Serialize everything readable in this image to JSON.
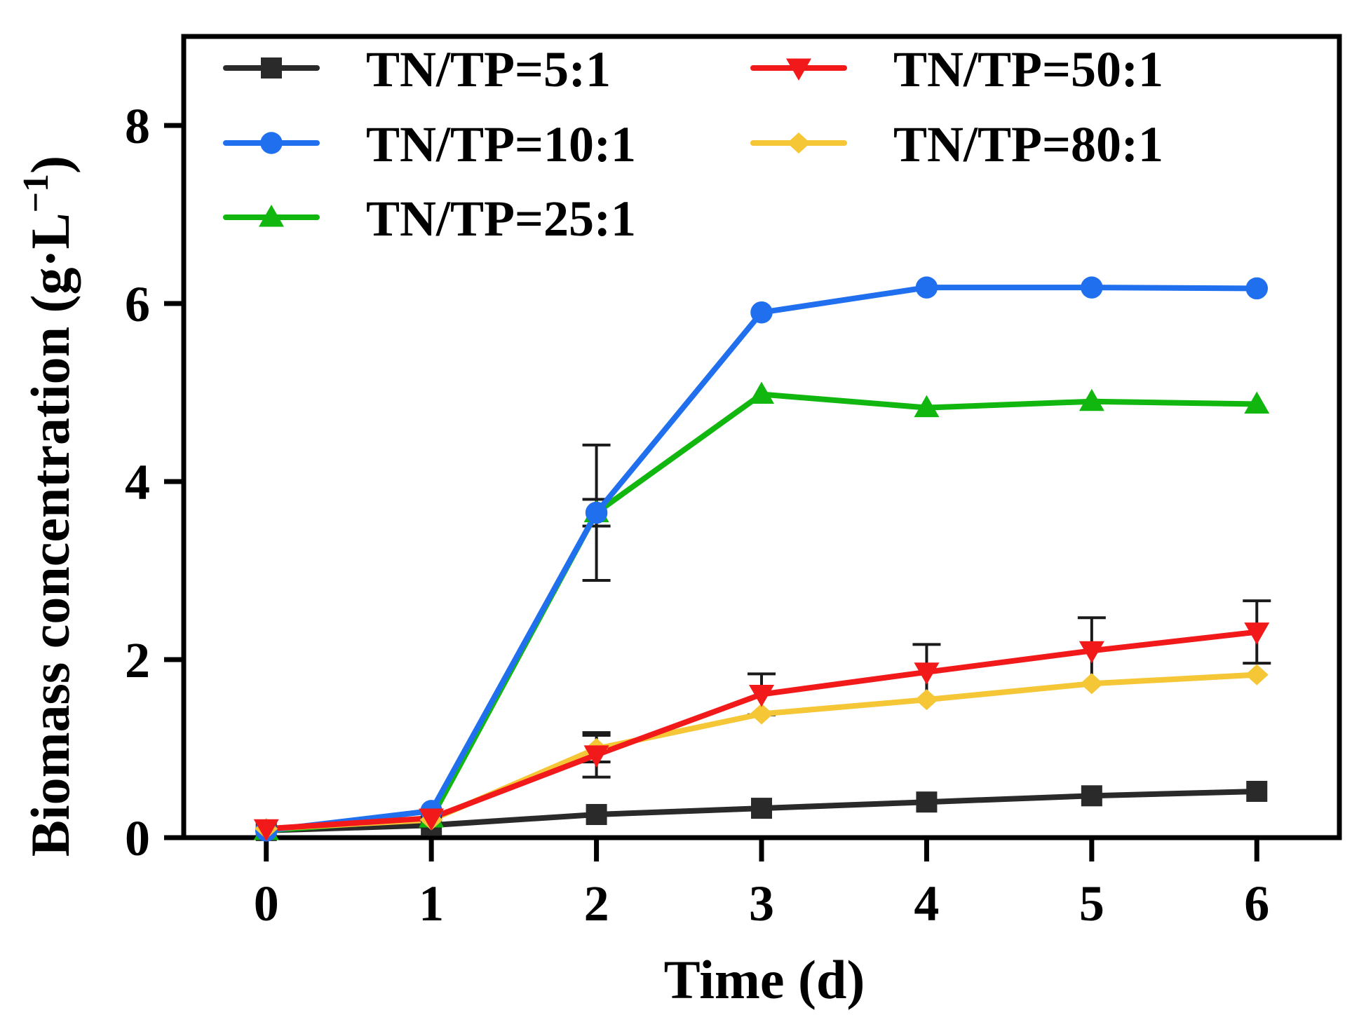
{
  "chart_data": {
    "type": "line",
    "title": "",
    "xlabel": "Time (d)",
    "ylabel": "Biomass concentration (g·L",
    "ylabel_superscript": "−1",
    "ylabel_close": ")",
    "x": [
      0,
      1,
      2,
      3,
      4,
      5,
      6
    ],
    "x_ticks": [
      "0",
      "1",
      "2",
      "3",
      "4",
      "5",
      "6"
    ],
    "y_ticks": [
      "0",
      "2",
      "4",
      "6",
      "8"
    ],
    "xlim": [
      -0.5,
      6.5
    ],
    "ylim": [
      0,
      9
    ],
    "grid": false,
    "legend_position": "top-left",
    "series": [
      {
        "name": "TN/TP=5:1",
        "color": "#2a2a2a",
        "marker": "square",
        "values": [
          0.08,
          0.14,
          0.26,
          0.33,
          0.4,
          0.47,
          0.52
        ],
        "errors": [
          0,
          0,
          0,
          0,
          0,
          0,
          0
        ]
      },
      {
        "name": "TN/TP=10:1",
        "color": "#1f6fef",
        "marker": "circle",
        "values": [
          0.08,
          0.3,
          3.65,
          5.9,
          6.18,
          6.18,
          6.17
        ],
        "errors": [
          0,
          0,
          0.76,
          0,
          0,
          0,
          0
        ]
      },
      {
        "name": "TN/TP=25:1",
        "color": "#11b70f",
        "marker": "triangle-up",
        "values": [
          0.08,
          0.22,
          3.65,
          4.98,
          4.83,
          4.9,
          4.87
        ],
        "errors": [
          0,
          0,
          0.15,
          0,
          0,
          0,
          0
        ]
      },
      {
        "name": "TN/TP=50:1",
        "color": "#f2191b",
        "marker": "triangle-down",
        "values": [
          0.1,
          0.22,
          0.93,
          1.61,
          1.86,
          2.1,
          2.31
        ],
        "errors": [
          0,
          0,
          0.25,
          0.23,
          0.31,
          0.37,
          0.35
        ]
      },
      {
        "name": "TN/TP=80:1",
        "color": "#f5c636",
        "marker": "diamond",
        "values": [
          0.1,
          0.2,
          1.0,
          1.39,
          1.55,
          1.73,
          1.83
        ],
        "errors": [
          0,
          0,
          0.15,
          0,
          0,
          0,
          0
        ]
      }
    ]
  }
}
